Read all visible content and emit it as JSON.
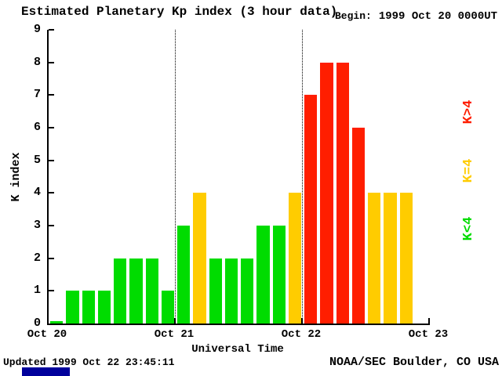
{
  "title": "Estimated Planetary Kp index (3 hour data)",
  "begin": {
    "label": "Begin:",
    "value": "1999 Oct 20 0000UT"
  },
  "footer": {
    "updated": "Updated 1999 Oct 22 23:45:11",
    "credit": "NOAA/SEC Boulder, CO USA"
  },
  "colors": {
    "low": "#00dc00",
    "mid": "#ffcc00",
    "high": "#ff1e00",
    "logo": "#00009c"
  },
  "legend": [
    {
      "label": "K>4",
      "color": "high"
    },
    {
      "label": "K=4",
      "color": "mid"
    },
    {
      "label": "K<4",
      "color": "low"
    }
  ],
  "chart_data": {
    "type": "bar",
    "title": "Estimated Planetary Kp index (3 hour data)",
    "xlabel": "Universal Time",
    "ylabel": "K index",
    "ylim": [
      0,
      9
    ],
    "y_ticks": [
      0,
      1,
      2,
      3,
      4,
      5,
      6,
      7,
      8,
      9
    ],
    "x_ticks": [
      "Oct 20",
      "Oct 21",
      "Oct 22",
      "Oct 23"
    ],
    "bars_per_day": 8,
    "interval_hours": 3,
    "days": [
      {
        "date": "Oct 20",
        "kp": [
          0,
          1,
          1,
          1,
          2,
          2,
          2,
          1
        ]
      },
      {
        "date": "Oct 21",
        "kp": [
          3,
          4,
          2,
          2,
          2,
          3,
          3,
          4
        ]
      },
      {
        "date": "Oct 22",
        "kp": [
          7,
          8,
          8,
          6,
          4,
          4,
          4
        ]
      }
    ],
    "color_rule": {
      "low": "K<4",
      "mid": "K=4",
      "high": "K>4"
    },
    "legend_position": "right",
    "gridlines": "dotted vertical lines at day boundaries"
  }
}
